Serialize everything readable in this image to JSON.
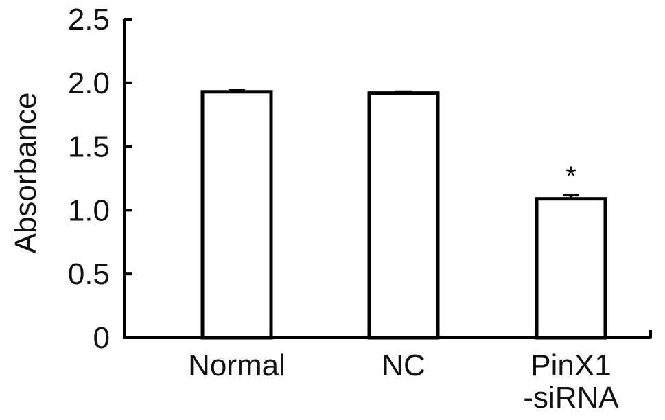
{
  "chart_data": {
    "type": "bar",
    "title": "",
    "xlabel": "",
    "ylabel": "Absorbance",
    "ylim": [
      0,
      2.5
    ],
    "yticks": [
      {
        "value": 0,
        "label": "0"
      },
      {
        "value": 0.5,
        "label": "0.5"
      },
      {
        "value": 1.0,
        "label": "1.0"
      },
      {
        "value": 1.5,
        "label": "1.5"
      },
      {
        "value": 2.0,
        "label": "2.0"
      },
      {
        "value": 2.5,
        "label": "2.5"
      }
    ],
    "categories": [
      {
        "lines": [
          "Normal"
        ]
      },
      {
        "lines": [
          "NC"
        ]
      },
      {
        "lines": [
          "PinX1",
          "-siRNA"
        ]
      }
    ],
    "values": [
      1.93,
      1.92,
      1.09
    ],
    "errors": [
      0.01,
      0.01,
      0.03
    ],
    "annotations": [
      "",
      "",
      "*"
    ],
    "grid": false,
    "bar_fill": "#ffffff",
    "bar_stroke": "#000000"
  }
}
